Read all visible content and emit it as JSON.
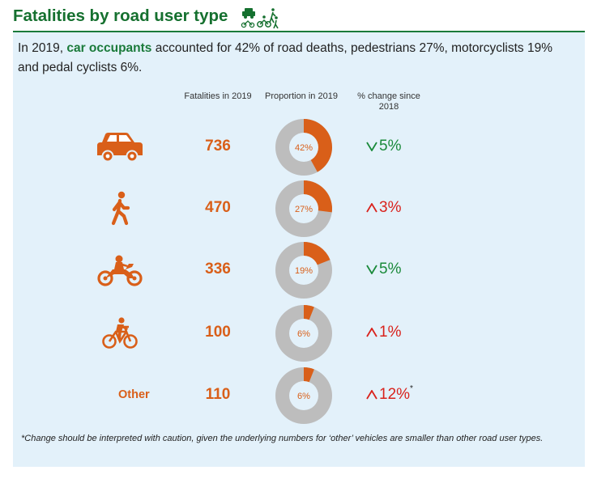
{
  "title": "Fatalities by road user type",
  "intro": {
    "pre": "In 2019, ",
    "highlight": "car occupants",
    "post": " accounted for 42% of road deaths, pedestrians 27%, motorcyclists 19% and pedal cyclists 6%."
  },
  "headers": {
    "fatalities": "Fatalities in 2019",
    "proportion": "Proportion in 2019",
    "change": "% change since 2018"
  },
  "colors": {
    "accent": "#d95f19",
    "ring": "#bdbdbd",
    "hole": "#e3f1fa",
    "down": "#1a8a3a",
    "up": "#d9221c",
    "title": "#15702f"
  },
  "chart_data": {
    "type": "table",
    "columns": [
      "Fatalities in 2019",
      "Proportion in 2019",
      "% change since 2018"
    ],
    "rows": [
      {
        "icon": "car-icon",
        "label": "",
        "fatalities": 736,
        "proportion": 42,
        "proportion_label": "42%",
        "change_label": "5%",
        "direction": "down",
        "change": -5,
        "note": ""
      },
      {
        "icon": "pedestrian-icon",
        "label": "",
        "fatalities": 470,
        "proportion": 27,
        "proportion_label": "27%",
        "change_label": "3%",
        "direction": "up",
        "change": 3,
        "note": ""
      },
      {
        "icon": "motorcycle-icon",
        "label": "",
        "fatalities": 336,
        "proportion": 19,
        "proportion_label": "19%",
        "change_label": "5%",
        "direction": "down",
        "change": -5,
        "note": ""
      },
      {
        "icon": "bicycle-icon",
        "label": "",
        "fatalities": 100,
        "proportion": 6,
        "proportion_label": "6%",
        "change_label": "1%",
        "direction": "up",
        "change": 1,
        "note": ""
      },
      {
        "icon": "",
        "label": "Other",
        "fatalities": 110,
        "proportion": 6,
        "proportion_label": "6%",
        "change_label": "12%",
        "direction": "up",
        "change": 12,
        "note": "*"
      }
    ]
  },
  "footnote": "*Change should be interpreted with caution, given the underlying numbers for ‘other’ vehicles are smaller than other road user types."
}
